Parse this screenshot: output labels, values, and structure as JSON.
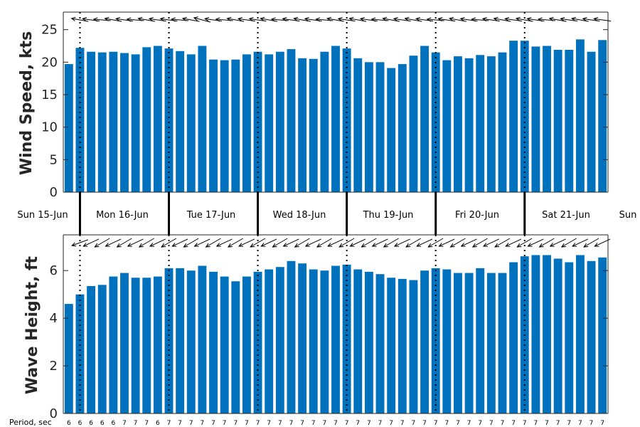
{
  "colors": {
    "bar": "#0072BD",
    "axis": "#262626",
    "arrow": "#000000"
  },
  "chart_data": [
    {
      "type": "bar",
      "ylabel": "Wind Speed, kts",
      "ylim": [
        0,
        27.7
      ],
      "yticks": [
        0,
        5,
        10,
        15,
        20,
        25
      ],
      "values": [
        19.7,
        22.2,
        21.6,
        21.5,
        21.6,
        21.4,
        21.2,
        22.3,
        22.5,
        22.1,
        21.7,
        21.2,
        22.5,
        20.4,
        20.3,
        20.4,
        21.2,
        21.6,
        21.2,
        21.6,
        22.0,
        20.6,
        20.5,
        21.6,
        22.5,
        22.1,
        20.6,
        20.0,
        20.0,
        19.1,
        19.7,
        21.0,
        22.5,
        21.5,
        20.3,
        20.9,
        20.6,
        21.1,
        20.9,
        21.5,
        23.3,
        23.3,
        22.4,
        22.5,
        21.9,
        21.9,
        23.5,
        21.6,
        23.4
      ],
      "arrow_directions_deg": [
        100,
        100,
        98,
        95,
        100,
        98,
        95,
        100,
        98,
        98,
        95,
        100,
        105,
        98,
        95,
        100,
        98,
        98,
        100,
        95,
        98,
        100,
        98,
        95,
        100,
        98,
        100,
        98,
        95,
        100,
        98,
        100,
        98,
        95,
        98,
        100,
        98,
        95,
        98,
        100,
        98,
        100,
        98,
        95,
        100,
        98,
        100,
        98,
        98
      ]
    },
    {
      "type": "bar",
      "ylabel": "Wave Height, ft",
      "ylim": [
        0,
        7.5
      ],
      "yticks": [
        0,
        2,
        4,
        6
      ],
      "values": [
        4.6,
        5.0,
        5.35,
        5.4,
        5.75,
        5.9,
        5.7,
        5.7,
        5.75,
        6.1,
        6.1,
        6.0,
        6.2,
        5.95,
        5.75,
        5.55,
        5.75,
        5.95,
        6.05,
        6.15,
        6.4,
        6.3,
        6.05,
        6.0,
        6.2,
        6.25,
        6.05,
        5.95,
        5.85,
        5.7,
        5.65,
        5.6,
        6.0,
        6.1,
        6.05,
        5.9,
        5.9,
        6.1,
        5.9,
        5.9,
        6.35,
        6.6,
        6.65,
        6.65,
        6.5,
        6.35,
        6.65,
        6.4,
        6.55
      ],
      "arrow_directions_deg": [
        70,
        70,
        65,
        60,
        65,
        60,
        65,
        60,
        65,
        60,
        65,
        60,
        65,
        60,
        65,
        60,
        65,
        60,
        65,
        60,
        65,
        60,
        65,
        60,
        65,
        60,
        65,
        60,
        65,
        60,
        65,
        60,
        65,
        60,
        65,
        60,
        65,
        60,
        65,
        60,
        65,
        60,
        65,
        60,
        65,
        60,
        65,
        60,
        65
      ]
    }
  ],
  "day_labels": [
    "Sun 15-Jun",
    "Mon 16-Jun",
    "Tue 17-Jun",
    "Wed 18-Jun",
    "Thu 19-Jun",
    "Fri 20-Jun",
    "Sat 21-Jun",
    "Sun"
  ],
  "period_label": "Period, sec",
  "periods": [
    "6",
    "6",
    "6",
    "6",
    "6",
    "7",
    "7",
    "7",
    "6",
    "7",
    "7",
    "7",
    "7",
    "7",
    "7",
    "7",
    "7",
    "7",
    "7",
    "7",
    "7",
    "7",
    "7",
    "7",
    "7",
    "7",
    "7",
    "7",
    "7",
    "7",
    "7",
    "7",
    "7",
    "7",
    "7",
    "7",
    "7",
    "7",
    "7",
    "7",
    "7",
    "7",
    "7",
    "7",
    "7",
    "7",
    "7",
    "7",
    "7"
  ]
}
